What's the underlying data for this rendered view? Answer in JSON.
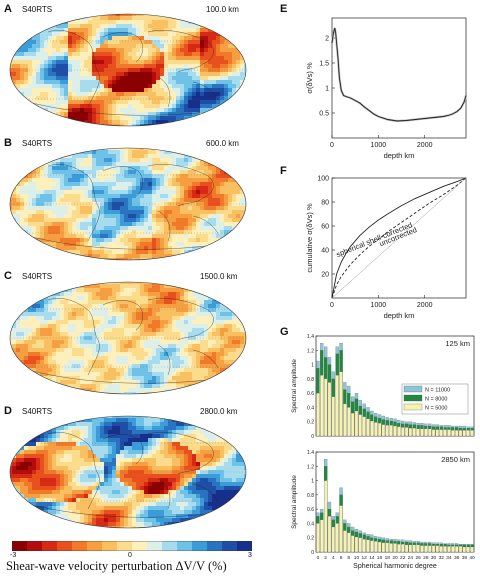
{
  "maps": [
    {
      "panel": "A",
      "model": "S40RTS",
      "depth": "100.0 km"
    },
    {
      "panel": "B",
      "model": "S40RTS",
      "depth": "600.0 km"
    },
    {
      "panel": "C",
      "model": "S40RTS",
      "depth": "1500.0 km"
    },
    {
      "panel": "D",
      "model": "S40RTS",
      "depth": "2800.0 km"
    }
  ],
  "colorbar": {
    "label": "Shear-wave velocity perturbation  ΔV/V (%)",
    "ticks": [
      "-3",
      "0",
      "3"
    ],
    "colors": [
      "#8b0000",
      "#b40c0c",
      "#d62a14",
      "#e8501e",
      "#f07a2a",
      "#f59e42",
      "#f9c062",
      "#fbdc8c",
      "#fdf0bc",
      "#dcefe8",
      "#a6dcee",
      "#6ec2e8",
      "#3c9cd8",
      "#2a73c0",
      "#1e4ea6",
      "#162f8a"
    ]
  },
  "chart_data": [
    {
      "panel": "E",
      "type": "line",
      "xlabel": "depth  km",
      "ylabel": "σ(δVs)  %",
      "xlim": [
        0,
        2891
      ],
      "ylim": [
        0,
        2.4
      ],
      "xticks": [
        0,
        1000,
        2000
      ],
      "yticks": [
        0.5,
        1,
        1.5,
        2
      ],
      "x": [
        0,
        30,
        60,
        80,
        100,
        130,
        160,
        200,
        250,
        300,
        400,
        500,
        600,
        700,
        800,
        900,
        1000,
        1200,
        1400,
        1600,
        1800,
        2000,
        2200,
        2400,
        2500,
        2600,
        2700,
        2780,
        2850,
        2891
      ],
      "y": [
        1.9,
        2.1,
        2.2,
        2.1,
        1.9,
        1.6,
        1.2,
        0.95,
        0.85,
        0.83,
        0.8,
        0.75,
        0.7,
        0.62,
        0.55,
        0.48,
        0.43,
        0.37,
        0.34,
        0.35,
        0.37,
        0.39,
        0.41,
        0.43,
        0.45,
        0.48,
        0.53,
        0.6,
        0.72,
        0.85
      ]
    },
    {
      "panel": "F",
      "type": "line",
      "xlabel": "depth  km",
      "ylabel": "cumulative  σ(δVs)  %",
      "xlim": [
        0,
        2891
      ],
      "ylim": [
        0,
        100
      ],
      "xticks": [
        0,
        1000,
        2000
      ],
      "yticks": [
        20,
        40,
        60,
        80,
        100
      ],
      "annotations": [
        "spherical shell-corrected",
        "uncorrected"
      ],
      "series": [
        {
          "x": [
            0,
            100,
            200,
            300,
            400,
            600,
            800,
            1000,
            1200,
            1500,
            1800,
            2100,
            2400,
            2700,
            2891
          ],
          "y": [
            0,
            20,
            30,
            37,
            43,
            52,
            59,
            65,
            70,
            77,
            83,
            88,
            93,
            97,
            100
          ]
        },
        {
          "x": [
            0,
            100,
            200,
            300,
            400,
            600,
            800,
            1000,
            1200,
            1500,
            1800,
            2100,
            2400,
            2700,
            2891
          ],
          "y": [
            0,
            11,
            18,
            23,
            28,
            36,
            43,
            49,
            55,
            63,
            71,
            79,
            86,
            94,
            100
          ]
        }
      ]
    },
    {
      "panel": "G",
      "type": "bar",
      "depth_label": "125 km",
      "ylabel": "Spectral amplitude",
      "ylim": [
        0,
        1.4
      ],
      "yticks": [
        0,
        0.2,
        0.4,
        0.6,
        0.8,
        1.0,
        1.2,
        1.4
      ],
      "legend": [
        "N = 11000",
        "N = 8000",
        "N = 5000"
      ],
      "colors": [
        "#8ec5d6",
        "#1f8a3c",
        "#f6f2b0"
      ],
      "x": [
        0,
        1,
        2,
        3,
        4,
        5,
        6,
        7,
        8,
        9,
        10,
        11,
        12,
        13,
        14,
        15,
        16,
        17,
        18,
        19,
        20,
        21,
        22,
        23,
        24,
        25,
        26,
        27,
        28,
        29,
        30,
        31,
        32,
        33,
        34,
        35,
        36,
        37,
        38,
        39,
        40
      ],
      "series": [
        {
          "name": "N = 11000",
          "values": [
            1.05,
            1.3,
            1.25,
            1.1,
            0.9,
            1.25,
            1.3,
            0.75,
            0.7,
            0.55,
            0.6,
            0.5,
            0.45,
            0.4,
            0.35,
            0.32,
            0.3,
            0.28,
            0.26,
            0.25,
            0.24,
            0.22,
            0.21,
            0.2,
            0.2,
            0.19,
            0.18,
            0.18,
            0.17,
            0.17,
            0.16,
            0.16,
            0.15,
            0.15,
            0.15,
            0.14,
            0.14,
            0.14,
            0.14,
            0.13,
            0.13
          ]
        },
        {
          "name": "N = 8000",
          "values": [
            0.95,
            1.2,
            1.1,
            1.0,
            0.8,
            1.15,
            1.2,
            0.65,
            0.6,
            0.48,
            0.52,
            0.42,
            0.38,
            0.34,
            0.3,
            0.27,
            0.25,
            0.23,
            0.22,
            0.21,
            0.2,
            0.18,
            0.17,
            0.17,
            0.16,
            0.16,
            0.15,
            0.15,
            0.14,
            0.14,
            0.13,
            0.13,
            0.13,
            0.12,
            0.12,
            0.12,
            0.12,
            0.11,
            0.11,
            0.11,
            0.11
          ]
        },
        {
          "name": "N = 5000",
          "values": [
            0.6,
            0.85,
            0.8,
            0.75,
            0.55,
            0.85,
            0.9,
            0.45,
            0.4,
            0.32,
            0.35,
            0.3,
            0.27,
            0.24,
            0.21,
            0.19,
            0.18,
            0.16,
            0.15,
            0.15,
            0.14,
            0.13,
            0.12,
            0.12,
            0.11,
            0.11,
            0.1,
            0.1,
            0.1,
            0.1,
            0.09,
            0.09,
            0.09,
            0.09,
            0.09,
            0.08,
            0.08,
            0.08,
            0.08,
            0.08,
            0.08
          ]
        }
      ]
    },
    {
      "panel": "G",
      "type": "bar",
      "depth_label": "2850 km",
      "ylabel": "Spectral amplitude",
      "ylim": [
        0,
        1.4
      ],
      "yticks": [
        0,
        0.2,
        0.4,
        0.6,
        0.8,
        1.0,
        1.2,
        1.4
      ],
      "xlabel": "Spherical harmonic degree",
      "xticks": [
        0,
        2,
        4,
        6,
        8,
        10,
        12,
        14,
        16,
        18,
        20,
        22,
        24,
        26,
        28,
        30,
        32,
        34,
        36,
        38,
        40
      ],
      "colors": [
        "#8ec5d6",
        "#1f8a3c",
        "#f6f2b0"
      ],
      "x": [
        0,
        1,
        2,
        3,
        4,
        5,
        6,
        7,
        8,
        9,
        10,
        11,
        12,
        13,
        14,
        15,
        16,
        17,
        18,
        19,
        20,
        21,
        22,
        23,
        24,
        25,
        26,
        27,
        28,
        29,
        30,
        31,
        32,
        33,
        34,
        35,
        36,
        37,
        38,
        39,
        40
      ],
      "series": [
        {
          "name": "N = 11000",
          "values": [
            0.55,
            0.6,
            1.3,
            0.7,
            0.5,
            0.55,
            0.9,
            0.45,
            0.4,
            0.35,
            0.32,
            0.3,
            0.27,
            0.25,
            0.24,
            0.22,
            0.21,
            0.2,
            0.19,
            0.18,
            0.18,
            0.17,
            0.17,
            0.16,
            0.16,
            0.15,
            0.15,
            0.14,
            0.14,
            0.14,
            0.13,
            0.13,
            0.13,
            0.12,
            0.12,
            0.12,
            0.12,
            0.11,
            0.11,
            0.11,
            0.11
          ]
        },
        {
          "name": "N = 8000",
          "values": [
            0.5,
            0.55,
            1.2,
            0.6,
            0.45,
            0.5,
            0.8,
            0.4,
            0.35,
            0.3,
            0.28,
            0.26,
            0.24,
            0.22,
            0.2,
            0.19,
            0.18,
            0.17,
            0.16,
            0.16,
            0.15,
            0.15,
            0.14,
            0.14,
            0.13,
            0.13,
            0.13,
            0.12,
            0.12,
            0.12,
            0.11,
            0.11,
            0.11,
            0.11,
            0.1,
            0.1,
            0.1,
            0.1,
            0.1,
            0.1,
            0.1
          ]
        },
        {
          "name": "N = 5000",
          "values": [
            0.4,
            0.45,
            1.0,
            0.5,
            0.35,
            0.4,
            0.65,
            0.3,
            0.27,
            0.23,
            0.21,
            0.2,
            0.18,
            0.17,
            0.16,
            0.15,
            0.14,
            0.13,
            0.13,
            0.12,
            0.12,
            0.11,
            0.11,
            0.1,
            0.1,
            0.1,
            0.1,
            0.09,
            0.09,
            0.09,
            0.09,
            0.09,
            0.08,
            0.08,
            0.08,
            0.08,
            0.08,
            0.08,
            0.07,
            0.07,
            0.07
          ]
        }
      ]
    }
  ]
}
